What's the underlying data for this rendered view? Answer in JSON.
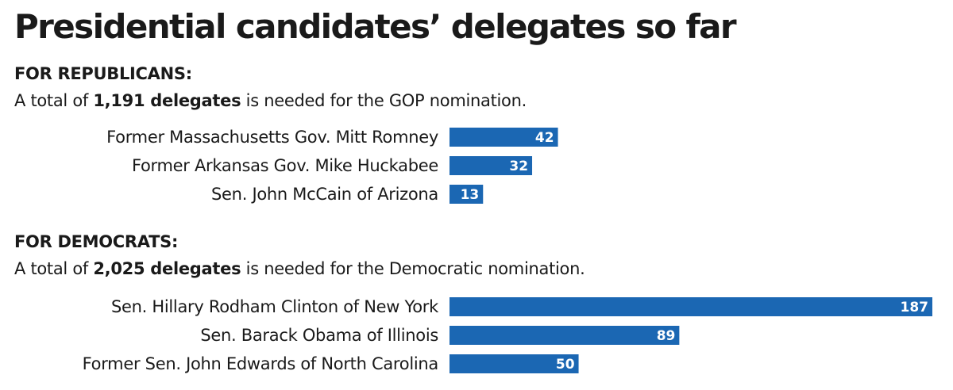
{
  "title": "Presidential candidates’ delegates so far",
  "colors": {
    "bar": "#1b67b3",
    "text": "#1a1a1a",
    "bar_value": "#ffffff"
  },
  "republicans": {
    "heading": "FOR REPUBLICANS:",
    "note_prefix": "A total of ",
    "note_bold": "1,191 delegates",
    "note_suffix": " is needed for the GOP nomination."
  },
  "democrats": {
    "heading": "FOR DEMOCRATS:",
    "note_prefix": "A total of ",
    "note_bold": "2,025 delegates",
    "note_suffix": " is needed for the Democratic nomination."
  },
  "chart_data": [
    {
      "type": "bar",
      "orientation": "horizontal",
      "title": "FOR REPUBLICANS:",
      "categories": [
        "Former Massachusetts Gov. Mitt Romney",
        "Former Arkansas Gov. Mike Huckabee",
        "Sen. John McCain of Arizona"
      ],
      "values": [
        42,
        32,
        13
      ],
      "xlim": [
        0,
        187
      ]
    },
    {
      "type": "bar",
      "orientation": "horizontal",
      "title": "FOR DEMOCRATS:",
      "categories": [
        "Sen. Hillary Rodham Clinton of New York",
        "Sen. Barack Obama of Illinois",
        "Former Sen. John Edwards of North Carolina"
      ],
      "values": [
        187,
        89,
        50
      ],
      "xlim": [
        0,
        187
      ]
    }
  ]
}
